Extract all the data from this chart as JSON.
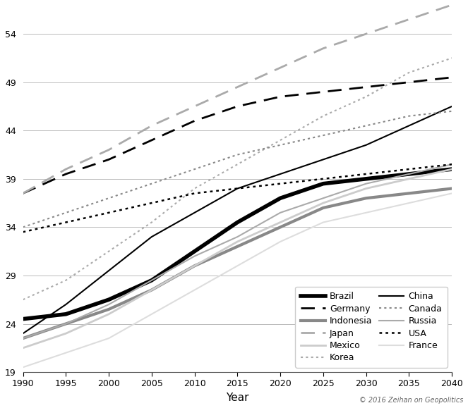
{
  "years": [
    1990,
    1995,
    2000,
    2005,
    2010,
    2015,
    2020,
    2025,
    2030,
    2035,
    2040
  ],
  "series": {
    "Brazil": {
      "values": [
        24.5,
        25.0,
        26.5,
        28.5,
        31.5,
        34.5,
        37.0,
        38.5,
        39.0,
        39.5,
        40.0
      ],
      "color": "#000000",
      "linewidth": 4.0,
      "linestyle": "solid"
    },
    "Germany": {
      "values": [
        37.5,
        39.5,
        41.0,
        43.0,
        45.0,
        46.5,
        47.5,
        48.0,
        48.5,
        49.0,
        49.5
      ],
      "color": "#000000",
      "linewidth": 2.0,
      "linestyle": "dashed"
    },
    "Indonesia": {
      "values": [
        22.5,
        24.0,
        25.5,
        27.5,
        30.0,
        32.0,
        34.0,
        36.0,
        37.0,
        37.5,
        38.0
      ],
      "color": "#888888",
      "linewidth": 3.0,
      "linestyle": "solid"
    },
    "Japan": {
      "values": [
        37.5,
        40.0,
        42.0,
        44.5,
        46.5,
        48.5,
        50.5,
        52.5,
        54.0,
        55.5,
        57.0
      ],
      "color": "#aaaaaa",
      "linewidth": 2.0,
      "linestyle": "dashed"
    },
    "Mexico": {
      "values": [
        21.5,
        23.0,
        25.0,
        27.5,
        30.0,
        32.5,
        34.5,
        36.5,
        38.0,
        39.0,
        40.0
      ],
      "color": "#cccccc",
      "linewidth": 2.0,
      "linestyle": "solid"
    },
    "Korea": {
      "values": [
        26.5,
        28.5,
        31.5,
        34.5,
        38.0,
        40.5,
        43.0,
        45.5,
        47.5,
        50.0,
        51.5
      ],
      "color": "#aaaaaa",
      "linewidth": 1.5,
      "linestyle": "dotted"
    },
    "China": {
      "values": [
        23.0,
        26.0,
        29.5,
        33.0,
        35.5,
        38.0,
        39.5,
        41.0,
        42.5,
        44.5,
        46.5
      ],
      "color": "#000000",
      "linewidth": 1.5,
      "linestyle": "solid"
    },
    "Canada": {
      "values": [
        34.0,
        35.5,
        37.0,
        38.5,
        40.0,
        41.5,
        42.5,
        43.5,
        44.5,
        45.5,
        46.0
      ],
      "color": "#888888",
      "linewidth": 1.5,
      "linestyle": "dotted"
    },
    "Russia": {
      "values": [
        22.5,
        24.0,
        26.0,
        28.5,
        31.0,
        33.0,
        35.5,
        37.0,
        38.5,
        39.5,
        40.5
      ],
      "color": "#aaaaaa",
      "linewidth": 1.5,
      "linestyle": "solid"
    },
    "USA": {
      "values": [
        33.5,
        34.5,
        35.5,
        36.5,
        37.5,
        38.0,
        38.5,
        39.0,
        39.5,
        40.0,
        40.5
      ],
      "color": "#000000",
      "linewidth": 1.8,
      "linestyle": "dotted"
    },
    "France": {
      "values": [
        19.5,
        21.0,
        22.5,
        25.0,
        27.5,
        30.0,
        32.5,
        34.5,
        35.5,
        36.5,
        37.5
      ],
      "color": "#dddddd",
      "linewidth": 1.5,
      "linestyle": "solid"
    }
  },
  "legend_left": [
    "Brazil",
    "Indonesia",
    "Mexico",
    "China",
    "Russia",
    "France"
  ],
  "legend_right": [
    "Germany",
    "Japan",
    "Korea",
    "Canada",
    "USA"
  ],
  "xlabel": "Year",
  "ylim": [
    19,
    57
  ],
  "xlim": [
    1990,
    2040
  ],
  "yticks": [
    19,
    24,
    29,
    34,
    39,
    44,
    49,
    54
  ],
  "xticks": [
    1990,
    1995,
    2000,
    2005,
    2010,
    2015,
    2020,
    2025,
    2030,
    2035,
    2040
  ],
  "copyright_text": "© 2016 Zeihan on Geopolitics",
  "background_color": "#ffffff",
  "grid_color": "#bbbbbb"
}
